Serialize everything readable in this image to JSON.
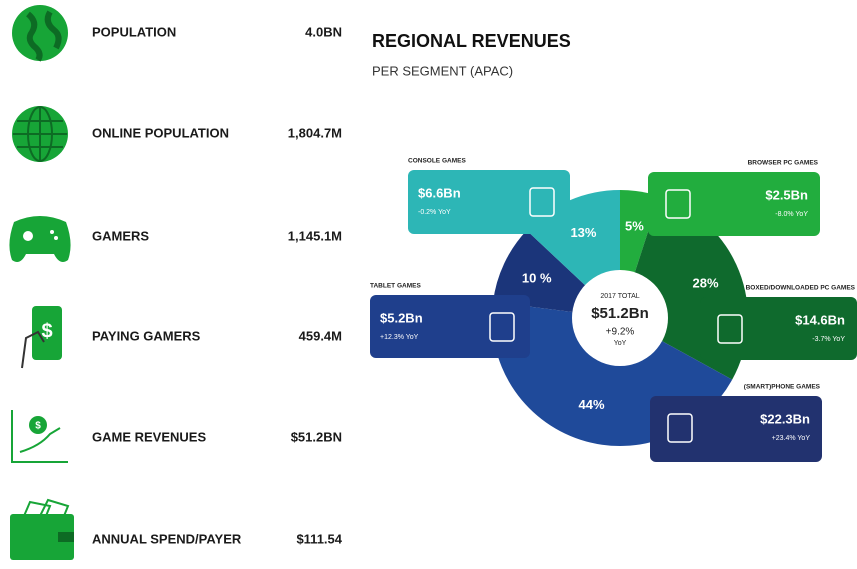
{
  "stats": [
    {
      "label": "POPULATION",
      "value": "4.0BN"
    },
    {
      "label": "ONLINE POPULATION",
      "value": "1,804.7M"
    },
    {
      "label": "GAMERS",
      "value": "1,145.1M"
    },
    {
      "label": "PAYING GAMERS",
      "value": "459.4M"
    },
    {
      "label": "GAME REVENUES",
      "value": "$51.2BN"
    },
    {
      "label": "ANNUAL SPEND/PAYER",
      "value": "$111.54"
    }
  ],
  "chart_data": {
    "type": "pie",
    "title": "REGIONAL REVENUES",
    "subtitle": "PER SEGMENT (APAC)",
    "center_texts": [
      "2017 TOTAL",
      "$51.2Bn",
      "+9.2%",
      "YoY"
    ],
    "categories": [
      "BROWSER PC GAMES",
      "BOXED/DOWNLOADED PC GAMES",
      "(SMART)PHONE GAMES",
      "TABLET GAMES",
      "CONSOLE GAMES"
    ],
    "values": [
      5,
      28,
      44,
      10,
      13
    ],
    "value_labels": [
      "5%",
      "28%",
      "44%",
      "10 %",
      "13%"
    ],
    "revenue_labels": [
      "$2.5Bn",
      "$14.6Bn",
      "$22.3Bn",
      "$5.2Bn",
      "$6.6Bn"
    ],
    "yoy_labels": [
      "-8.0% YoY",
      "-3.7% YoY",
      "+23.4% YoY",
      "+12.3% YoY",
      "-0.2% YoY"
    ],
    "colors": [
      "#22ad3e",
      "#0f6a2d",
      "#1f4a9a",
      "#1b357a",
      "#2db6b6"
    ],
    "card_colors": [
      "#22ad3e",
      "#0f6a2d",
      "#22326f",
      "#1f3f8c",
      "#2db6b6"
    ]
  }
}
